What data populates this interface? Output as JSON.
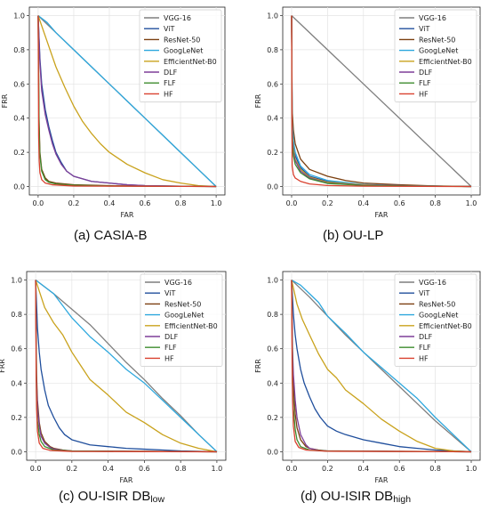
{
  "axis_labels": {
    "x": "FAR",
    "y": "FRR"
  },
  "ticks": [
    "0.0",
    "0.2",
    "0.4",
    "0.6",
    "0.8",
    "1.0"
  ],
  "series_names": [
    "VGG-16",
    "ViT",
    "ResNet-50",
    "GoogLeNet",
    "EfficientNet-B0",
    "DLF",
    "FLF",
    "HF"
  ],
  "colors": {
    "VGG-16": "#7f7f7f",
    "ViT": "#1f4e9c",
    "ResNet-50": "#7b3f10",
    "GoogLeNet": "#2ea8de",
    "EfficientNet-B0": "#c9a21c",
    "DLF": "#7e3f98",
    "FLF": "#3d8c2e",
    "HF": "#d9412f"
  },
  "captions": {
    "a": "(a) CASIA-B",
    "b": "(b) OU-LP",
    "c_main": "(c) OU-ISIR DB",
    "c_sub": "low",
    "d_main": "(d) OU-ISIR DB",
    "d_sub": "high"
  },
  "chart_data": [
    {
      "type": "line",
      "panel": "a",
      "caption": "(a) CASIA-B",
      "xlabel": "FAR",
      "ylabel": "FRR",
      "xlim": [
        0,
        1
      ],
      "ylim": [
        0,
        1
      ],
      "grid": true,
      "legend": "top-right",
      "series": [
        {
          "name": "VGG-16",
          "x": [
            0,
            0.1,
            0.2,
            0.3,
            0.4,
            0.5,
            0.6,
            0.7,
            0.8,
            0.9,
            1.0
          ],
          "y": [
            1.0,
            0.9,
            0.8,
            0.7,
            0.6,
            0.5,
            0.4,
            0.3,
            0.2,
            0.1,
            0.0
          ]
        },
        {
          "name": "ViT",
          "x": [
            0,
            0.01,
            0.02,
            0.04,
            0.06,
            0.08,
            0.1,
            0.13,
            0.16,
            0.2,
            0.3,
            0.4,
            0.5,
            0.6,
            0.8,
            1.0
          ],
          "y": [
            1.0,
            0.75,
            0.6,
            0.45,
            0.35,
            0.27,
            0.2,
            0.14,
            0.09,
            0.06,
            0.03,
            0.02,
            0.01,
            0.005,
            0.002,
            0.0
          ]
        },
        {
          "name": "ResNet-50",
          "x": [
            0,
            0.005,
            0.01,
            0.02,
            0.04,
            0.06,
            0.1,
            0.2,
            0.4,
            0.6,
            1.0
          ],
          "y": [
            1.0,
            0.4,
            0.2,
            0.1,
            0.05,
            0.03,
            0.02,
            0.01,
            0.005,
            0.002,
            0.0
          ]
        },
        {
          "name": "GoogLeNet",
          "x": [
            0,
            0.05,
            0.1,
            0.2,
            0.3,
            0.4,
            0.5,
            0.6,
            0.7,
            0.8,
            0.9,
            1.0
          ],
          "y": [
            1.0,
            0.96,
            0.9,
            0.8,
            0.7,
            0.6,
            0.5,
            0.4,
            0.3,
            0.2,
            0.1,
            0.0
          ]
        },
        {
          "name": "EfficientNet-B0",
          "x": [
            0,
            0.05,
            0.1,
            0.15,
            0.2,
            0.25,
            0.3,
            0.35,
            0.4,
            0.5,
            0.6,
            0.7,
            0.8,
            0.9,
            1.0
          ],
          "y": [
            1.0,
            0.85,
            0.7,
            0.58,
            0.47,
            0.38,
            0.31,
            0.25,
            0.2,
            0.13,
            0.08,
            0.04,
            0.02,
            0.005,
            0.0
          ]
        },
        {
          "name": "DLF",
          "x": [
            0,
            0.01,
            0.02,
            0.04,
            0.06,
            0.08,
            0.1,
            0.13,
            0.16,
            0.2,
            0.3,
            0.4,
            0.5,
            0.6,
            0.8,
            1.0
          ],
          "y": [
            1.0,
            0.72,
            0.56,
            0.42,
            0.33,
            0.25,
            0.19,
            0.13,
            0.09,
            0.06,
            0.03,
            0.02,
            0.01,
            0.005,
            0.002,
            0.0
          ]
        },
        {
          "name": "FLF",
          "x": [
            0,
            0.005,
            0.01,
            0.02,
            0.04,
            0.06,
            0.1,
            0.2,
            0.4,
            1.0
          ],
          "y": [
            1.0,
            0.35,
            0.18,
            0.09,
            0.04,
            0.025,
            0.015,
            0.008,
            0.003,
            0.0
          ]
        },
        {
          "name": "HF",
          "x": [
            0,
            0.003,
            0.006,
            0.01,
            0.02,
            0.04,
            0.08,
            0.2,
            1.0
          ],
          "y": [
            1.0,
            0.3,
            0.15,
            0.08,
            0.04,
            0.02,
            0.01,
            0.003,
            0.0
          ]
        }
      ]
    },
    {
      "type": "line",
      "panel": "b",
      "caption": "(b) OU-LP",
      "xlabel": "FAR",
      "ylabel": "FRR",
      "xlim": [
        0,
        1
      ],
      "ylim": [
        0,
        1
      ],
      "grid": true,
      "legend": "top-right",
      "series": [
        {
          "name": "VGG-16",
          "x": [
            0,
            1.0
          ],
          "y": [
            1.0,
            0.0
          ]
        },
        {
          "name": "ViT",
          "x": [
            0,
            0.003,
            0.01,
            0.02,
            0.05,
            0.1,
            0.2,
            0.4,
            0.6,
            1.0
          ],
          "y": [
            1.0,
            0.35,
            0.25,
            0.18,
            0.11,
            0.06,
            0.03,
            0.01,
            0.005,
            0.0
          ]
        },
        {
          "name": "ResNet-50",
          "x": [
            0,
            0.003,
            0.01,
            0.02,
            0.05,
            0.1,
            0.2,
            0.3,
            0.4,
            0.6,
            0.8,
            1.0
          ],
          "y": [
            1.0,
            0.45,
            0.33,
            0.25,
            0.16,
            0.1,
            0.06,
            0.035,
            0.02,
            0.01,
            0.003,
            0.0
          ]
        },
        {
          "name": "GoogLeNet",
          "x": [
            0,
            0.003,
            0.01,
            0.02,
            0.05,
            0.1,
            0.2,
            0.4,
            0.6,
            1.0
          ],
          "y": [
            1.0,
            0.38,
            0.27,
            0.2,
            0.12,
            0.07,
            0.035,
            0.012,
            0.005,
            0.0
          ]
        },
        {
          "name": "EfficientNet-B0",
          "x": [
            0,
            0.003,
            0.01,
            0.02,
            0.05,
            0.1,
            0.2,
            0.4,
            0.6,
            1.0
          ],
          "y": [
            1.0,
            0.3,
            0.22,
            0.16,
            0.1,
            0.055,
            0.025,
            0.01,
            0.004,
            0.0
          ]
        },
        {
          "name": "DLF",
          "x": [
            0,
            0.003,
            0.01,
            0.02,
            0.05,
            0.1,
            0.2,
            0.4,
            1.0
          ],
          "y": [
            1.0,
            0.28,
            0.2,
            0.15,
            0.09,
            0.05,
            0.02,
            0.008,
            0.0
          ]
        },
        {
          "name": "FLF",
          "x": [
            0,
            0.003,
            0.01,
            0.02,
            0.05,
            0.1,
            0.2,
            0.4,
            1.0
          ],
          "y": [
            1.0,
            0.25,
            0.18,
            0.13,
            0.08,
            0.045,
            0.018,
            0.006,
            0.0
          ]
        },
        {
          "name": "HF",
          "x": [
            0,
            0.003,
            0.01,
            0.02,
            0.05,
            0.1,
            0.2,
            0.4,
            1.0
          ],
          "y": [
            1.0,
            0.12,
            0.07,
            0.05,
            0.03,
            0.015,
            0.006,
            0.002,
            0.0
          ]
        }
      ]
    },
    {
      "type": "line",
      "panel": "c",
      "caption": "(c) OU-ISIR DBlow",
      "xlabel": "FAR",
      "ylabel": "FRR",
      "xlim": [
        0,
        1
      ],
      "ylim": [
        0,
        1
      ],
      "grid": true,
      "legend": "top-right",
      "series": [
        {
          "name": "VGG-16",
          "x": [
            0,
            0.1,
            0.2,
            0.3,
            0.4,
            0.5,
            0.6,
            0.7,
            0.8,
            0.9,
            1.0
          ],
          "y": [
            1.0,
            0.92,
            0.83,
            0.74,
            0.63,
            0.52,
            0.42,
            0.31,
            0.21,
            0.1,
            0.0
          ]
        },
        {
          "name": "ViT",
          "x": [
            0,
            0.01,
            0.02,
            0.03,
            0.05,
            0.07,
            0.1,
            0.13,
            0.16,
            0.2,
            0.3,
            0.4,
            0.5,
            0.6,
            0.7,
            0.8,
            1.0
          ],
          "y": [
            1.0,
            0.72,
            0.58,
            0.48,
            0.36,
            0.27,
            0.2,
            0.14,
            0.1,
            0.07,
            0.04,
            0.03,
            0.02,
            0.015,
            0.01,
            0.005,
            0.0
          ]
        },
        {
          "name": "ResNet-50",
          "x": [
            0,
            0.005,
            0.01,
            0.02,
            0.03,
            0.05,
            0.08,
            0.1,
            0.15,
            0.2,
            1.0
          ],
          "y": [
            1.0,
            0.45,
            0.3,
            0.17,
            0.11,
            0.06,
            0.03,
            0.02,
            0.01,
            0.005,
            0.0
          ]
        },
        {
          "name": "GoogLeNet",
          "x": [
            0,
            0.05,
            0.1,
            0.15,
            0.2,
            0.3,
            0.4,
            0.5,
            0.6,
            0.7,
            0.8,
            0.9,
            1.0
          ],
          "y": [
            1.0,
            0.96,
            0.92,
            0.85,
            0.78,
            0.67,
            0.58,
            0.48,
            0.4,
            0.3,
            0.2,
            0.1,
            0.0
          ]
        },
        {
          "name": "EfficientNet-B0",
          "x": [
            0,
            0.05,
            0.1,
            0.15,
            0.2,
            0.25,
            0.3,
            0.4,
            0.5,
            0.6,
            0.7,
            0.8,
            0.9,
            1.0
          ],
          "y": [
            1.0,
            0.84,
            0.75,
            0.68,
            0.58,
            0.5,
            0.42,
            0.33,
            0.23,
            0.17,
            0.1,
            0.05,
            0.02,
            0.0
          ]
        },
        {
          "name": "DLF",
          "x": [
            0,
            0.005,
            0.01,
            0.02,
            0.03,
            0.05,
            0.08,
            0.1,
            0.15,
            0.2,
            1.0
          ],
          "y": [
            1.0,
            0.4,
            0.26,
            0.15,
            0.09,
            0.05,
            0.025,
            0.015,
            0.008,
            0.004,
            0.0
          ]
        },
        {
          "name": "FLF",
          "x": [
            0,
            0.005,
            0.01,
            0.02,
            0.03,
            0.05,
            0.1,
            0.2,
            1.0
          ],
          "y": [
            1.0,
            0.3,
            0.18,
            0.1,
            0.06,
            0.03,
            0.01,
            0.004,
            0.0
          ]
        },
        {
          "name": "HF",
          "x": [
            0,
            0.003,
            0.006,
            0.01,
            0.02,
            0.04,
            0.08,
            0.2,
            1.0
          ],
          "y": [
            1.0,
            0.45,
            0.25,
            0.12,
            0.05,
            0.02,
            0.008,
            0.002,
            0.0
          ]
        }
      ]
    },
    {
      "type": "line",
      "panel": "d",
      "caption": "(d) OU-ISIR DBhigh",
      "xlabel": "FAR",
      "ylabel": "FRR",
      "xlim": [
        0,
        1
      ],
      "ylim": [
        0,
        1
      ],
      "grid": true,
      "legend": "top-right",
      "series": [
        {
          "name": "VGG-16",
          "x": [
            0,
            0.1,
            0.2,
            0.3,
            0.4,
            0.5,
            0.6,
            0.7,
            0.8,
            0.9,
            1.0
          ],
          "y": [
            1.0,
            0.9,
            0.79,
            0.68,
            0.58,
            0.48,
            0.38,
            0.28,
            0.18,
            0.09,
            0.0
          ]
        },
        {
          "name": "ViT",
          "x": [
            0,
            0.01,
            0.02,
            0.03,
            0.05,
            0.07,
            0.1,
            0.13,
            0.16,
            0.2,
            0.25,
            0.3,
            0.4,
            0.5,
            0.6,
            0.7,
            0.8,
            0.9,
            1.0
          ],
          "y": [
            1.0,
            0.8,
            0.68,
            0.6,
            0.48,
            0.4,
            0.32,
            0.25,
            0.2,
            0.15,
            0.12,
            0.1,
            0.07,
            0.05,
            0.03,
            0.02,
            0.01,
            0.005,
            0.0
          ]
        },
        {
          "name": "ResNet-50",
          "x": [
            0,
            0.005,
            0.01,
            0.02,
            0.03,
            0.05,
            0.08,
            0.1,
            0.15,
            0.2,
            1.0
          ],
          "y": [
            1.0,
            0.55,
            0.38,
            0.22,
            0.14,
            0.07,
            0.03,
            0.02,
            0.01,
            0.005,
            0.0
          ]
        },
        {
          "name": "GoogLeNet",
          "x": [
            0,
            0.05,
            0.1,
            0.15,
            0.2,
            0.3,
            0.4,
            0.5,
            0.6,
            0.7,
            0.8,
            0.9,
            1.0
          ],
          "y": [
            1.0,
            0.97,
            0.92,
            0.87,
            0.79,
            0.69,
            0.58,
            0.49,
            0.4,
            0.31,
            0.2,
            0.1,
            0.0
          ]
        },
        {
          "name": "EfficientNet-B0",
          "x": [
            0,
            0.03,
            0.06,
            0.1,
            0.15,
            0.2,
            0.25,
            0.3,
            0.4,
            0.5,
            0.6,
            0.7,
            0.8,
            0.9,
            1.0
          ],
          "y": [
            1.0,
            0.86,
            0.77,
            0.68,
            0.57,
            0.48,
            0.43,
            0.36,
            0.28,
            0.19,
            0.12,
            0.06,
            0.02,
            0.005,
            0.0
          ]
        },
        {
          "name": "DLF",
          "x": [
            0,
            0.005,
            0.01,
            0.02,
            0.03,
            0.05,
            0.08,
            0.1,
            0.15,
            0.2,
            1.0
          ],
          "y": [
            1.0,
            0.6,
            0.45,
            0.3,
            0.2,
            0.1,
            0.04,
            0.02,
            0.008,
            0.004,
            0.0
          ]
        },
        {
          "name": "FLF",
          "x": [
            0,
            0.005,
            0.01,
            0.02,
            0.03,
            0.05,
            0.1,
            0.2,
            1.0
          ],
          "y": [
            1.0,
            0.4,
            0.25,
            0.13,
            0.07,
            0.03,
            0.01,
            0.004,
            0.0
          ]
        },
        {
          "name": "HF",
          "x": [
            0,
            0.003,
            0.006,
            0.01,
            0.02,
            0.04,
            0.08,
            0.2,
            1.0
          ],
          "y": [
            1.0,
            0.5,
            0.3,
            0.15,
            0.06,
            0.025,
            0.01,
            0.003,
            0.0
          ]
        }
      ]
    }
  ]
}
